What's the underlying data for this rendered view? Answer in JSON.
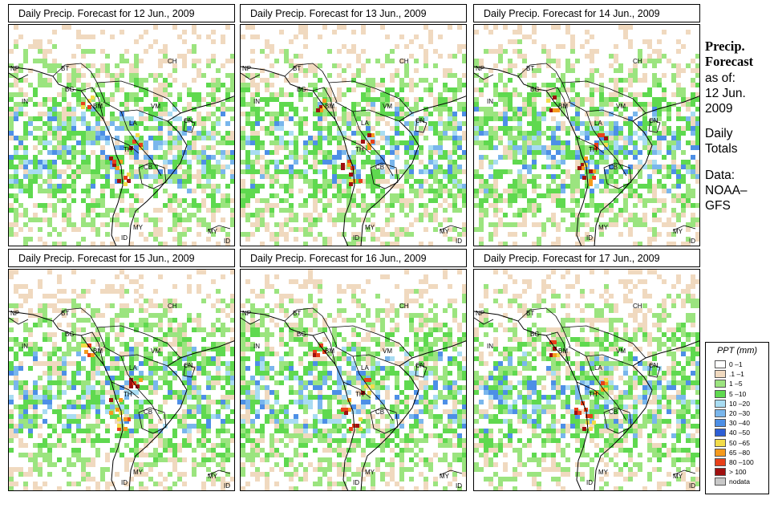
{
  "panels": [
    {
      "title": "Daily Precip. Forecast for  12 Jun., 2009",
      "seed": 11
    },
    {
      "title": "Daily Precip. Forecast for  13 Jun., 2009",
      "seed": 23
    },
    {
      "title": "Daily Precip. Forecast for  14 Jun., 2009",
      "seed": 37
    },
    {
      "title": "Daily Precip. Forecast for  15 Jun., 2009",
      "seed": 41
    },
    {
      "title": "Daily Precip. Forecast for  16 Jun., 2009",
      "seed": 59
    },
    {
      "title": "Daily Precip. Forecast for  17 Jun., 2009",
      "seed": 73
    }
  ],
  "country_labels": [
    "NP",
    "BT",
    "IN",
    "BG",
    "CH",
    "BM",
    "VM",
    "LA",
    "CN",
    "TH",
    "CB",
    "MY",
    "MY",
    "ID",
    "ID"
  ],
  "sidebar": {
    "heading1": "Precip.",
    "heading2": "Forecast",
    "line1": "as of:",
    "line2": "12 Jun.",
    "line3": "2009",
    "line4": "Daily",
    "line5": "Totals",
    "line6": "Data:",
    "line7": "NOAA–",
    "line8": "GFS"
  },
  "legend": {
    "title": "PPT (mm)",
    "items": [
      {
        "label": "0 –1",
        "color": "#ffffff"
      },
      {
        "label": ".1 –1",
        "color": "#f0d9bf"
      },
      {
        "label": "1 –5",
        "color": "#9be47f"
      },
      {
        "label": "5 –10",
        "color": "#5fd94f"
      },
      {
        "label": "10 –20",
        "color": "#a8dcf2"
      },
      {
        "label": "20 –30",
        "color": "#79b6ec"
      },
      {
        "label": "30 –40",
        "color": "#4d8fe6"
      },
      {
        "label": "40 –50",
        "color": "#2d5fd6"
      },
      {
        "label": "50 –65",
        "color": "#f2dc4a"
      },
      {
        "label": "65 –80",
        "color": "#f59a1d"
      },
      {
        "label": "80 –100",
        "color": "#e8401a"
      },
      {
        "label": "> 100",
        "color": "#a01010"
      },
      {
        "label": "nodata",
        "color": "#c8c8c8"
      }
    ]
  }
}
